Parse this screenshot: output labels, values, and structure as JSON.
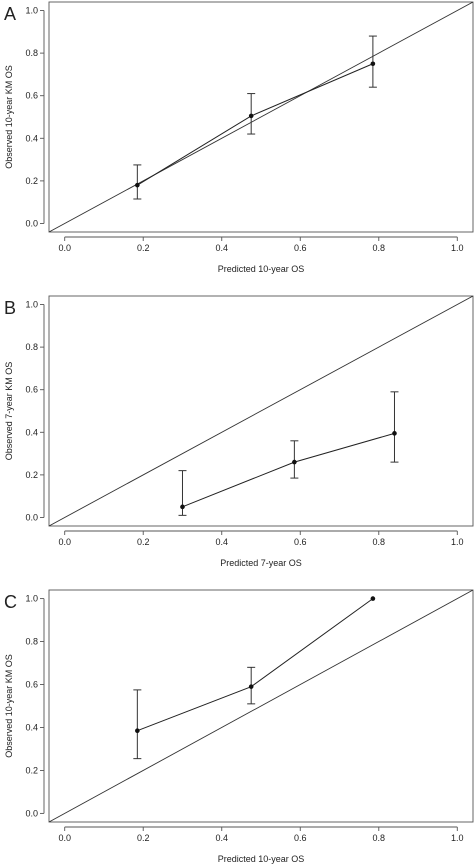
{
  "chart_data": [
    {
      "type": "scatter",
      "panel_label": "A",
      "xlabel": "Predicted 10-year OS",
      "ylabel": "Observed 10-year KM OS",
      "xlim": [
        0,
        1
      ],
      "ylim": [
        0,
        1
      ],
      "x_ticks": [
        "0.0",
        "0.2",
        "0.4",
        "0.6",
        "0.8",
        "1.0"
      ],
      "y_ticks": [
        "0.0",
        "0.2",
        "0.4",
        "0.6",
        "0.8",
        "1.0"
      ],
      "reference_line": "y = x",
      "grid": false,
      "series": [
        {
          "points": [
            {
              "x": 0.185,
              "y": 0.18,
              "lower": 0.115,
              "upper": 0.275
            },
            {
              "x": 0.475,
              "y": 0.505,
              "lower": 0.42,
              "upper": 0.61
            },
            {
              "x": 0.785,
              "y": 0.75,
              "lower": 0.64,
              "upper": 0.88
            }
          ]
        }
      ]
    },
    {
      "type": "scatter",
      "panel_label": "B",
      "xlabel": "Predicted 7-year OS",
      "ylabel": "Observed 7-year KM OS",
      "xlim": [
        0,
        1
      ],
      "ylim": [
        0,
        1
      ],
      "x_ticks": [
        "0.0",
        "0.2",
        "0.4",
        "0.6",
        "0.8",
        "1.0"
      ],
      "y_ticks": [
        "0.0",
        "0.2",
        "0.4",
        "0.6",
        "0.8",
        "1.0"
      ],
      "reference_line": "y = x",
      "grid": false,
      "series": [
        {
          "points": [
            {
              "x": 0.3,
              "y": 0.05,
              "lower": 0.01,
              "upper": 0.22
            },
            {
              "x": 0.585,
              "y": 0.26,
              "lower": 0.185,
              "upper": 0.36
            },
            {
              "x": 0.84,
              "y": 0.395,
              "lower": 0.26,
              "upper": 0.59
            }
          ]
        }
      ]
    },
    {
      "type": "scatter",
      "panel_label": "C",
      "xlabel": "Predicted 10-year OS",
      "ylabel": "Observed 10-year KM OS",
      "xlim": [
        0,
        1
      ],
      "ylim": [
        0,
        1
      ],
      "x_ticks": [
        "0.0",
        "0.2",
        "0.4",
        "0.6",
        "0.8",
        "1.0"
      ],
      "y_ticks": [
        "0.0",
        "0.2",
        "0.4",
        "0.6",
        "0.8",
        "1.0"
      ],
      "reference_line": "y = x",
      "grid": false,
      "series": [
        {
          "points": [
            {
              "x": 0.185,
              "y": 0.385,
              "lower": 0.255,
              "upper": 0.575
            },
            {
              "x": 0.475,
              "y": 0.59,
              "lower": 0.51,
              "upper": 0.68
            },
            {
              "x": 0.785,
              "y": 1.0,
              "lower": 1.0,
              "upper": 1.0
            }
          ]
        }
      ]
    }
  ]
}
